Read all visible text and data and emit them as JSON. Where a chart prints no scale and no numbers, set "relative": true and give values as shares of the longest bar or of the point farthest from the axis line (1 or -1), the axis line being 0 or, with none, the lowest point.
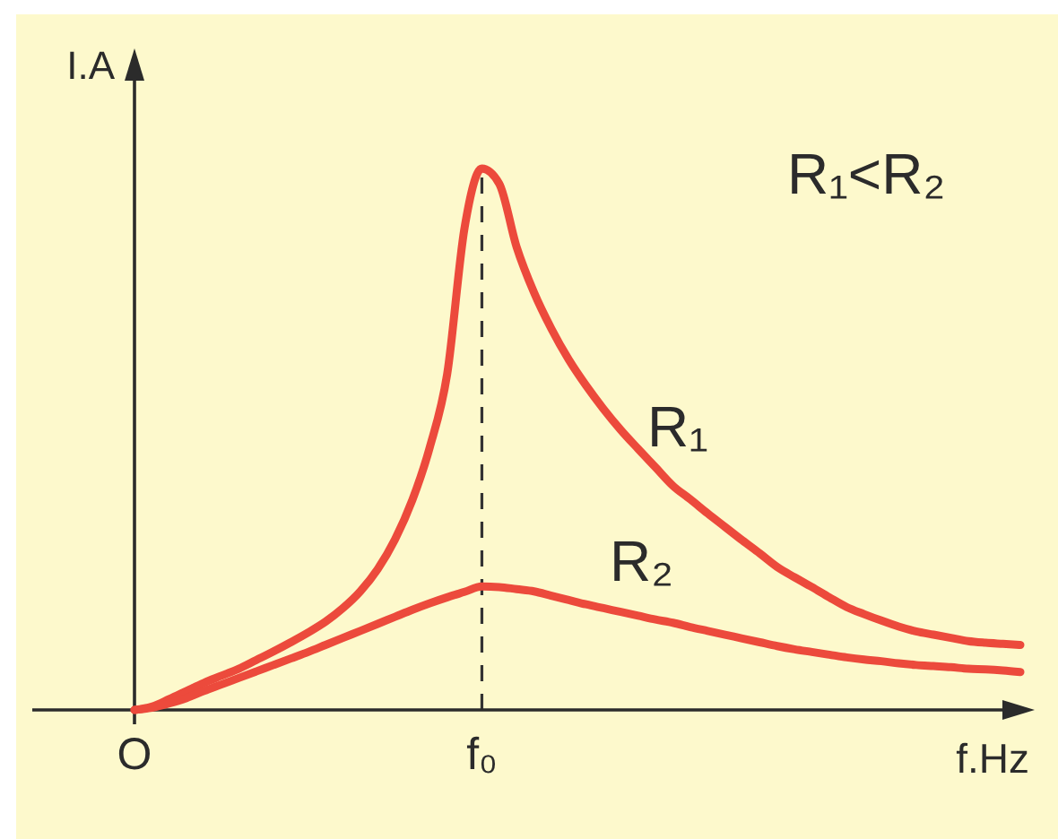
{
  "chart_data": {
    "type": "line",
    "xlabel": "f.Hz",
    "ylabel": "I.A",
    "relative": true,
    "categories": [
      "O",
      null,
      null,
      null,
      null,
      null,
      null,
      null,
      null,
      null,
      null,
      null,
      null,
      null,
      null,
      null,
      null,
      null,
      null,
      null,
      "f₀",
      null,
      null,
      null,
      null,
      null,
      null,
      null,
      null,
      null,
      null,
      null,
      null,
      null,
      null,
      null,
      null,
      null,
      null,
      null,
      null,
      null,
      null,
      null,
      null,
      null,
      null,
      null,
      null,
      null,
      null,
      null
    ],
    "series": [
      {
        "name": "R₁",
        "color": "#ec4a3c",
        "values": [
          0,
          0.006,
          0.02,
          0.035,
          0.05,
          0.063,
          0.076,
          0.092,
          0.108,
          0.125,
          0.143,
          0.163,
          0.188,
          0.219,
          0.26,
          0.315,
          0.388,
          0.485,
          0.62,
          0.89,
          1,
          0.972,
          0.855,
          0.771,
          0.704,
          0.647,
          0.599,
          0.556,
          0.517,
          0.482,
          0.448,
          0.414,
          0.389,
          0.363,
          0.338,
          0.313,
          0.289,
          0.264,
          0.245,
          0.227,
          0.208,
          0.19,
          0.177,
          0.165,
          0.154,
          0.145,
          0.139,
          0.133,
          0.127,
          0.124,
          0.122,
          0.12
        ]
      },
      {
        "name": "R₂",
        "color": "#ec4a3c",
        "values": [
          0,
          0.004,
          0.012,
          0.022,
          0.035,
          0.047,
          0.059,
          0.071,
          0.083,
          0.095,
          0.107,
          0.12,
          0.133,
          0.146,
          0.159,
          0.172,
          0.185,
          0.197,
          0.208,
          0.218,
          0.228,
          0.227,
          0.223,
          0.219,
          0.211,
          0.203,
          0.195,
          0.188,
          0.181,
          0.174,
          0.167,
          0.161,
          0.153,
          0.146,
          0.139,
          0.132,
          0.125,
          0.118,
          0.112,
          0.107,
          0.102,
          0.097,
          0.093,
          0.09,
          0.086,
          0.083,
          0.081,
          0.079,
          0.076,
          0.075,
          0.073,
          0.07
        ]
      }
    ],
    "ref_lines": [
      {
        "axis": "x",
        "value": "f₀",
        "color": "#333333",
        "line_style": "dashed"
      }
    ],
    "annotations": [
      "R₁<R₂"
    ]
  }
}
